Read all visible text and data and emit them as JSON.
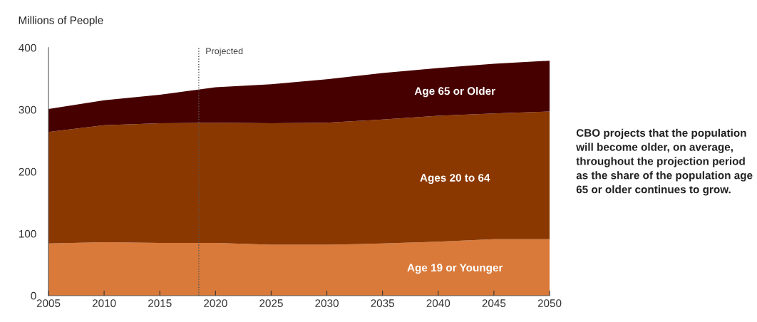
{
  "chart_data": {
    "type": "area",
    "stacked": true,
    "ylabel": "Millions of People",
    "x": [
      2005,
      2010,
      2015,
      2020,
      2025,
      2030,
      2035,
      2040,
      2045,
      2050
    ],
    "series": [
      {
        "name": "Age 19 or Younger",
        "color": "#d97a3a",
        "values": [
          84,
          86,
          85,
          85,
          82,
          82,
          84,
          87,
          91,
          91
        ]
      },
      {
        "name": "Ages 20 to 64",
        "color": "#8b3800",
        "values": [
          180,
          189,
          193,
          194,
          196,
          197,
          200,
          203,
          203,
          206
        ]
      },
      {
        "name": "Age 65 or Older",
        "color": "#470000",
        "values": [
          37,
          40,
          46,
          57,
          63,
          70,
          75,
          77,
          80,
          82
        ]
      }
    ],
    "xlim": [
      2005,
      2050
    ],
    "xticks": [
      2005,
      2010,
      2015,
      2020,
      2025,
      2030,
      2035,
      2040,
      2045,
      2050
    ],
    "ylim": [
      0,
      400
    ],
    "yticks": [
      0,
      100,
      200,
      300,
      400
    ],
    "ref_lines": [
      {
        "axis": "x",
        "value": 2018.5,
        "label": "Projected",
        "color": "#555555",
        "line_style": "dotted"
      }
    ],
    "annotations": [
      "CBO projects that the population will become older, on average, throughout the projection period as the share of the population age 65 or older continues to grow."
    ],
    "grid": false,
    "legend": false
  }
}
